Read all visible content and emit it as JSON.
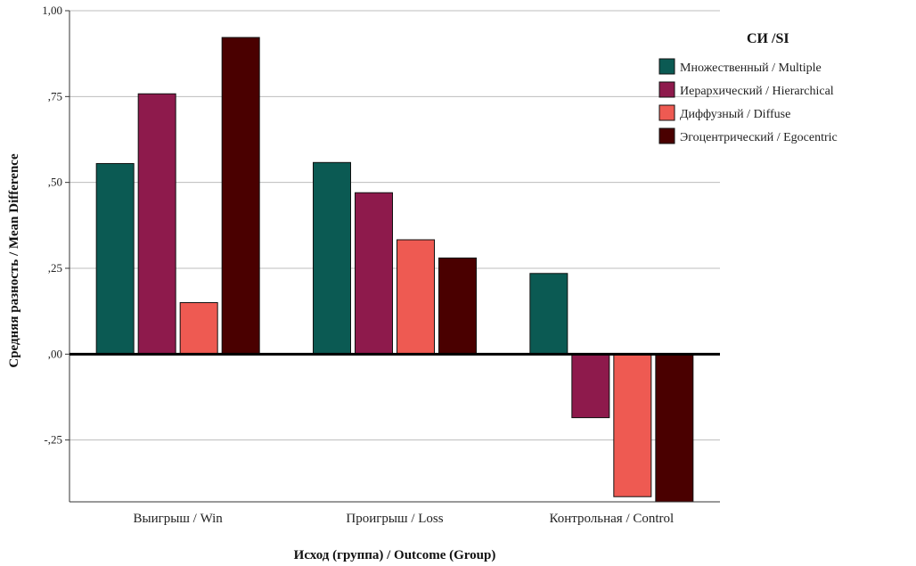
{
  "chart_data": {
    "type": "bar",
    "xlabel": "Исход (группа) / Outcome (Group)",
    "ylabel": "Средняя разность / Mean Difference",
    "ylim": [
      -0.43,
      1.0
    ],
    "yticks": [
      {
        "value": 1.0,
        "label": "1,00"
      },
      {
        "value": 0.75,
        "label": ",75"
      },
      {
        "value": 0.5,
        "label": ",50"
      },
      {
        "value": 0.25,
        "label": ",25"
      },
      {
        "value": 0.0,
        "label": ",00"
      },
      {
        "value": -0.25,
        "label": "-,25"
      }
    ],
    "grid": true,
    "legend": {
      "title": "СИ /SI",
      "position": "right"
    },
    "categories": [
      "Выигрыш / Win",
      "Проигрыш / Loss",
      "Контрольная / Control"
    ],
    "series": [
      {
        "name": "Множественный / Multiple",
        "color": "#0b5a53",
        "values": [
          0.555,
          0.558,
          0.235
        ]
      },
      {
        "name": "Иерархический / Hierarchical",
        "color": "#8e1a4c",
        "values": [
          0.758,
          0.47,
          -0.185
        ]
      },
      {
        "name": "Диффузный / Diffuse",
        "color": "#ee5a52",
        "values": [
          0.15,
          0.333,
          -0.415
        ]
      },
      {
        "name": "Эгоцентрический / Egocentric",
        "color": "#4a0000",
        "values": [
          0.922,
          0.28,
          -0.43
        ]
      }
    ]
  }
}
